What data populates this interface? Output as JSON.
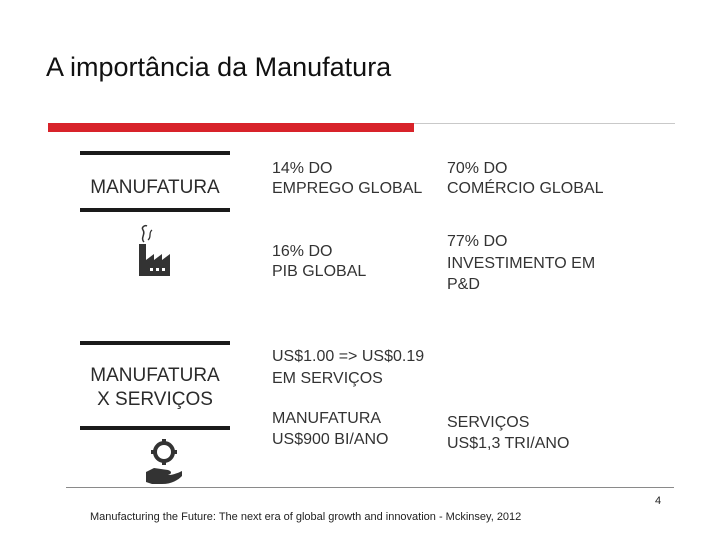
{
  "slide": {
    "title": "A importância da Manufatura",
    "accent_color": "#d8232a"
  },
  "left": {
    "label_1": "MANUFATURA",
    "label_2_line1": "MANUFATURA",
    "label_2_line2": "X SERVIÇOS",
    "icon_1": "factory-icon",
    "icon_2": "gear-hand-icon"
  },
  "stats": {
    "emprego_l1": "14% DO",
    "emprego_l2": "EMPREGO GLOBAL",
    "comercio_l1": "70% DO",
    "comercio_l2": "COMÉRCIO GLOBAL",
    "pib_l1": "16% DO",
    "pib_l2": "PIB GLOBAL",
    "invest_l1": "77% DO",
    "invest_l2": "INVESTIMENTO EM",
    "invest_l3": "P&D",
    "servicos_l1": "US$1.00 => US$0.19",
    "servicos_l2": "EM SERVIÇOS",
    "manuf_l1": "MANUFATURA",
    "manuf_l2": "US$900 BI/ANO",
    "serv_l1": "SERVIÇOS",
    "serv_l2": "US$1,3 TRI/ANO"
  },
  "footer": {
    "page_number": "4",
    "source": "Manufacturing the Future: The next era of global growth and innovation -  Mckinsey, 2012"
  }
}
